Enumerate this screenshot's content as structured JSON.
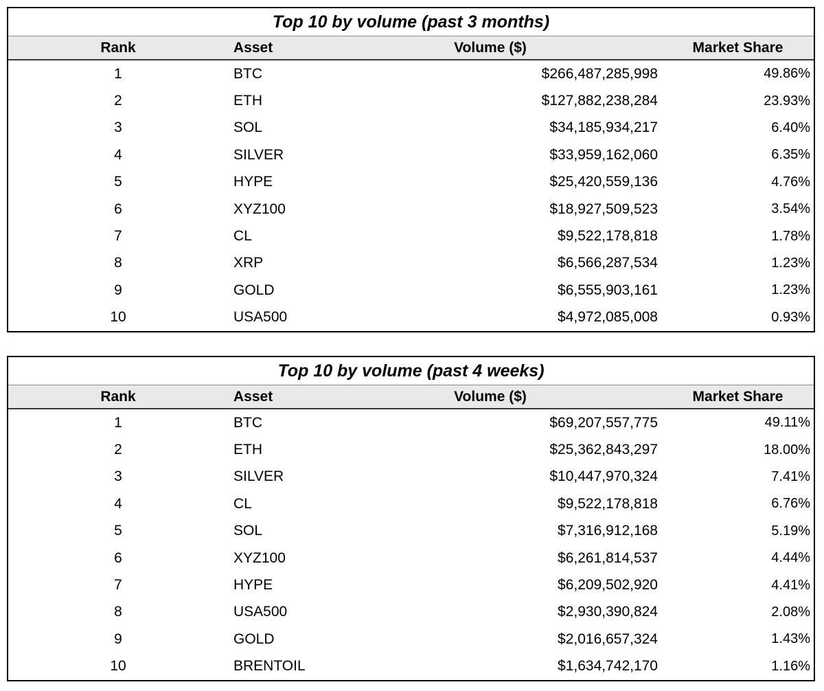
{
  "colors": {
    "page_background": "#ffffff",
    "table_border": "#000000",
    "header_background": "#e9e9e9",
    "header_top_rule": "#8a8a8a",
    "header_bottom_rule": "#3a3a3a",
    "text": "#000000"
  },
  "tables": [
    {
      "title": "Top 10 by volume (past 3 months)",
      "columns": {
        "rank": "Rank",
        "asset": "Asset",
        "volume": "Volume ($)",
        "share": "Market Share"
      },
      "rows": [
        {
          "rank": "1",
          "asset": "BTC",
          "volume": "$266,487,285,998",
          "share": "49.86%"
        },
        {
          "rank": "2",
          "asset": "ETH",
          "volume": "$127,882,238,284",
          "share": "23.93%"
        },
        {
          "rank": "3",
          "asset": "SOL",
          "volume": "$34,185,934,217",
          "share": "6.40%"
        },
        {
          "rank": "4",
          "asset": "SILVER",
          "volume": "$33,959,162,060",
          "share": "6.35%"
        },
        {
          "rank": "5",
          "asset": "HYPE",
          "volume": "$25,420,559,136",
          "share": "4.76%"
        },
        {
          "rank": "6",
          "asset": "XYZ100",
          "volume": "$18,927,509,523",
          "share": "3.54%"
        },
        {
          "rank": "7",
          "asset": "CL",
          "volume": "$9,522,178,818",
          "share": "1.78%"
        },
        {
          "rank": "8",
          "asset": "XRP",
          "volume": "$6,566,287,534",
          "share": "1.23%"
        },
        {
          "rank": "9",
          "asset": "GOLD",
          "volume": "$6,555,903,161",
          "share": "1.23%"
        },
        {
          "rank": "10",
          "asset": "USA500",
          "volume": "$4,972,085,008",
          "share": "0.93%"
        }
      ]
    },
    {
      "title": "Top 10 by volume (past 4 weeks)",
      "columns": {
        "rank": "Rank",
        "asset": "Asset",
        "volume": "Volume ($)",
        "share": "Market Share"
      },
      "rows": [
        {
          "rank": "1",
          "asset": "BTC",
          "volume": "$69,207,557,775",
          "share": "49.11%"
        },
        {
          "rank": "2",
          "asset": "ETH",
          "volume": "$25,362,843,297",
          "share": "18.00%"
        },
        {
          "rank": "3",
          "asset": "SILVER",
          "volume": "$10,447,970,324",
          "share": "7.41%"
        },
        {
          "rank": "4",
          "asset": "CL",
          "volume": "$9,522,178,818",
          "share": "6.76%"
        },
        {
          "rank": "5",
          "asset": "SOL",
          "volume": "$7,316,912,168",
          "share": "5.19%"
        },
        {
          "rank": "6",
          "asset": "XYZ100",
          "volume": "$6,261,814,537",
          "share": "4.44%"
        },
        {
          "rank": "7",
          "asset": "HYPE",
          "volume": "$6,209,502,920",
          "share": "4.41%"
        },
        {
          "rank": "8",
          "asset": "USA500",
          "volume": "$2,930,390,824",
          "share": "2.08%"
        },
        {
          "rank": "9",
          "asset": "GOLD",
          "volume": "$2,016,657,324",
          "share": "1.43%"
        },
        {
          "rank": "10",
          "asset": "BRENTOIL",
          "volume": "$1,634,742,170",
          "share": "1.16%"
        }
      ]
    }
  ]
}
